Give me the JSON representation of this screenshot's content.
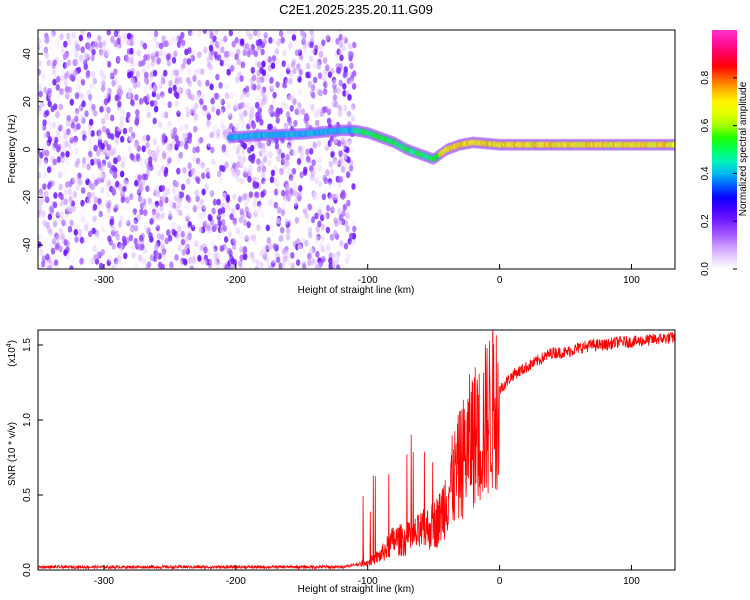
{
  "chart_data": [
    {
      "type": "heatmap",
      "title": "C2E1.2025.235.20.11.G09",
      "xlabel": "Height of straight line (km)",
      "ylabel": "Frequency (Hz)",
      "xlim": [
        -350,
        133
      ],
      "ylim": [
        -50,
        50
      ],
      "xticks": [
        -300,
        -200,
        -100,
        0,
        100
      ],
      "yticks": [
        -40,
        -20,
        0,
        20,
        40
      ],
      "colorbar": {
        "label": "Normalized spectral amplitude",
        "range": [
          0,
          1
        ],
        "ticks": [
          0.0,
          0.2,
          0.4,
          0.6,
          0.8
        ],
        "colormap": [
          "#ffffff",
          "#d9b3ff",
          "#9a4dff",
          "#5a00ff",
          "#0000ff",
          "#00aaff",
          "#00ffb0",
          "#00ff00",
          "#c8ff00",
          "#ffff00",
          "#ff9900",
          "#ff0000",
          "#ff0080",
          "#ff33cc"
        ]
      },
      "signal_track": [
        {
          "x": -205,
          "y": 5
        },
        {
          "x": -180,
          "y": 6
        },
        {
          "x": -150,
          "y": 6.5
        },
        {
          "x": -120,
          "y": 8
        },
        {
          "x": -110,
          "y": 8
        },
        {
          "x": -100,
          "y": 7
        },
        {
          "x": -90,
          "y": 5
        },
        {
          "x": -80,
          "y": 3
        },
        {
          "x": -70,
          "y": 0
        },
        {
          "x": -60,
          "y": -2
        },
        {
          "x": -50,
          "y": -4
        },
        {
          "x": -40,
          "y": 0
        },
        {
          "x": -30,
          "y": 2
        },
        {
          "x": -20,
          "y": 3
        },
        {
          "x": 0,
          "y": 2
        },
        {
          "x": 40,
          "y": 2
        },
        {
          "x": 80,
          "y": 2
        },
        {
          "x": 100,
          "y": 2
        },
        {
          "x": 133,
          "y": 2
        }
      ],
      "noise_region_x": [
        -350,
        -110
      ]
    },
    {
      "type": "line",
      "title": "",
      "xlabel": "Height of straight line (km)",
      "ylabel": "SNR (10 * v/v)",
      "yscale_label": "(x10",
      "yscale_exp": "4",
      "xlim": [
        -350,
        133
      ],
      "ylim": [
        0,
        1.6
      ],
      "xticks": [
        -300,
        -200,
        -100,
        0,
        100
      ],
      "yticks": [
        0.0,
        0.5,
        1.0,
        1.5
      ],
      "color": "#ff0000",
      "series": [
        {
          "x": [
            -350,
            -300,
            -250,
            -200,
            -150,
            -120,
            -100,
            -90,
            -80,
            -70,
            -60,
            -50,
            -45,
            -40,
            -35,
            -30,
            -25,
            -20,
            -15,
            -10,
            -5,
            0,
            10,
            20,
            30,
            40,
            50,
            60,
            70,
            80,
            90,
            100,
            110,
            120,
            133
          ],
          "values": [
            0.02,
            0.02,
            0.02,
            0.02,
            0.02,
            0.02,
            0.05,
            0.1,
            0.2,
            0.2,
            0.25,
            0.3,
            0.35,
            0.5,
            0.6,
            0.7,
            0.8,
            0.9,
            0.9,
            1.0,
            1.1,
            1.2,
            1.3,
            1.35,
            1.4,
            1.45,
            1.45,
            1.48,
            1.5,
            1.5,
            1.52,
            1.52,
            1.53,
            1.54,
            1.55
          ]
        }
      ]
    }
  ]
}
